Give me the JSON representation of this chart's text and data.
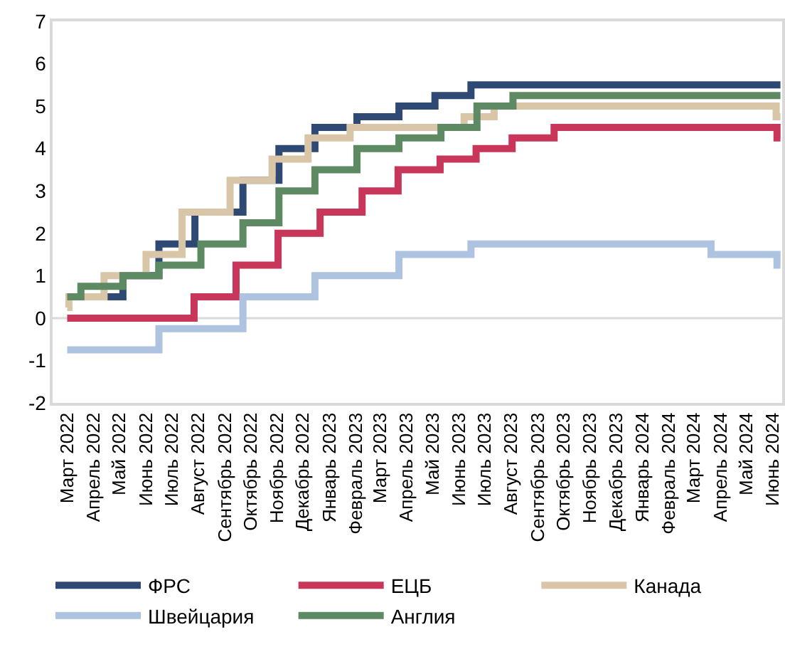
{
  "chart_data": {
    "type": "step",
    "xlim": [
      "2022-02-12",
      "2024-06-12"
    ],
    "ylim": [
      -2,
      7
    ],
    "yticks": [
      -2,
      -1,
      0,
      1,
      2,
      3,
      4,
      5,
      6,
      7
    ],
    "xticks": [
      {
        "value": "2022-03-01",
        "label": "Март 2022"
      },
      {
        "value": "2022-04-01",
        "label": "Апрель 2022"
      },
      {
        "value": "2022-05-01",
        "label": "Май 2022"
      },
      {
        "value": "2022-06-01",
        "label": "Июнь 2022"
      },
      {
        "value": "2022-07-01",
        "label": "Июль 2022"
      },
      {
        "value": "2022-08-01",
        "label": "Август 2022"
      },
      {
        "value": "2022-09-01",
        "label": "Сентябрь 2022"
      },
      {
        "value": "2022-10-01",
        "label": "Октябрь 2022"
      },
      {
        "value": "2022-11-01",
        "label": "Ноябрь 2022"
      },
      {
        "value": "2022-12-01",
        "label": "Декабрь 2022"
      },
      {
        "value": "2023-01-01",
        "label": "Январь 2023"
      },
      {
        "value": "2023-02-01",
        "label": "Февраль 2023"
      },
      {
        "value": "2023-03-01",
        "label": "Март 2023"
      },
      {
        "value": "2023-04-01",
        "label": "Апрель 2023"
      },
      {
        "value": "2023-05-01",
        "label": "Май 2023"
      },
      {
        "value": "2023-06-01",
        "label": "Июнь 2023"
      },
      {
        "value": "2023-07-01",
        "label": "Июль 2023"
      },
      {
        "value": "2023-08-01",
        "label": "Август 2023"
      },
      {
        "value": "2023-09-01",
        "label": "Сентябрь 2023"
      },
      {
        "value": "2023-10-01",
        "label": "Октябрь 2023"
      },
      {
        "value": "2023-11-01",
        "label": "Ноябрь 2023"
      },
      {
        "value": "2023-12-01",
        "label": "Декабрь 2023"
      },
      {
        "value": "2024-01-01",
        "label": "Январь 2024"
      },
      {
        "value": "2024-02-01",
        "label": "Февраль 2024"
      },
      {
        "value": "2024-03-01",
        "label": "Март 2024"
      },
      {
        "value": "2024-04-01",
        "label": "Апрель 2024"
      },
      {
        "value": "2024-05-01",
        "label": "Май 2024"
      },
      {
        "value": "2024-06-01",
        "label": "Июнь 2024"
      }
    ],
    "grid": false,
    "legend": "bottom",
    "ref_lines": [
      {
        "axis": "y",
        "value": 0,
        "color": "#d9d9d9"
      }
    ],
    "series": [
      {
        "name": "ФРС",
        "color": "#2e4a74",
        "x": [
          "2022-03-01",
          "2022-05-05",
          "2022-06-16",
          "2022-07-28",
          "2022-09-22",
          "2022-11-03",
          "2022-12-15",
          "2023-02-02",
          "2023-03-23",
          "2023-05-04",
          "2023-06-15",
          "2024-06-10"
        ],
        "values": [
          0.5,
          1.0,
          1.75,
          2.5,
          3.25,
          4.0,
          4.5,
          4.75,
          5.0,
          5.25,
          5.5,
          5.5
        ]
      },
      {
        "name": "ЕЦБ",
        "color": "#c8365a",
        "x": [
          "2022-03-01",
          "2022-07-27",
          "2022-09-14",
          "2022-11-02",
          "2022-12-21",
          "2023-02-08",
          "2023-03-22",
          "2023-05-10",
          "2023-06-21",
          "2023-08-02",
          "2023-09-20",
          "2024-06-06",
          "2024-06-10"
        ],
        "values": [
          0,
          0.5,
          1.25,
          2.0,
          2.5,
          3.0,
          3.5,
          3.75,
          4.0,
          4.25,
          4.5,
          4.25,
          4.25
        ]
      },
      {
        "name": "Канада",
        "color": "#d9c6a8",
        "x": [
          "2022-03-01",
          "2022-03-03",
          "2022-04-13",
          "2022-06-01",
          "2022-07-13",
          "2022-09-07",
          "2022-10-26",
          "2022-12-07",
          "2023-01-25",
          "2023-06-07",
          "2023-07-12",
          "2024-06-05",
          "2024-06-10"
        ],
        "values": [
          0.25,
          0.5,
          1.0,
          1.5,
          2.5,
          3.25,
          3.75,
          4.25,
          4.5,
          4.75,
          5.0,
          4.75,
          4.75
        ]
      },
      {
        "name": "Швейцария",
        "color": "#aec3e0",
        "x": [
          "2022-03-01",
          "2022-06-16",
          "2022-09-22",
          "2022-12-15",
          "2023-03-23",
          "2023-06-15",
          "2024-03-21",
          "2024-06-06",
          "2024-06-10"
        ],
        "values": [
          -0.75,
          -0.25,
          0.5,
          1.0,
          1.5,
          1.75,
          1.5,
          1.25,
          1.25
        ]
      },
      {
        "name": "Англия",
        "color": "#5e8a63",
        "x": [
          "2022-03-01",
          "2022-03-17",
          "2022-05-05",
          "2022-06-16",
          "2022-08-04",
          "2022-09-22",
          "2022-11-03",
          "2022-12-15",
          "2023-02-02",
          "2023-03-23",
          "2023-05-11",
          "2023-06-22",
          "2023-08-03",
          "2024-06-10"
        ],
        "values": [
          0.5,
          0.75,
          1.0,
          1.25,
          1.75,
          2.25,
          3.0,
          3.5,
          4.0,
          4.25,
          4.5,
          5.0,
          5.25,
          5.25
        ]
      }
    ]
  }
}
